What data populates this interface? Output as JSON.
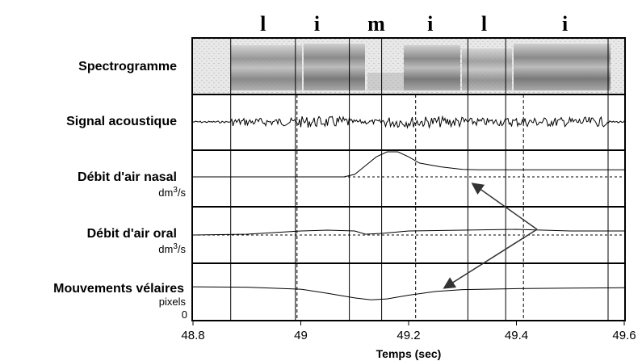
{
  "segments": [
    {
      "label": "l",
      "time": 48.93
    },
    {
      "label": "i",
      "time": 49.03
    },
    {
      "label": "m",
      "time": 49.14
    },
    {
      "label": "i",
      "time": 49.24
    },
    {
      "label": "l",
      "time": 49.34
    },
    {
      "label": "i",
      "time": 49.49
    }
  ],
  "panels": [
    {
      "id": "spectro",
      "label": "Spectrogramme",
      "unit": ""
    },
    {
      "id": "acoustic",
      "label": "Signal acoustique",
      "unit": ""
    },
    {
      "id": "nasal",
      "label": "Débit d'air nasal",
      "unit_base": "dm",
      "unit_exp": "3",
      "unit_tail": "/s"
    },
    {
      "id": "oral",
      "label": "Débit d'air oral",
      "unit_base": "dm",
      "unit_exp": "3",
      "unit_tail": "/s"
    },
    {
      "id": "velum",
      "label": "Mouvements vélaires",
      "unit": "pixels",
      "zero": "0"
    }
  ],
  "x_axis": {
    "title": "Temps (sec)",
    "min": 48.8,
    "max": 49.6,
    "ticks": [
      "48.8",
      "49",
      "49.2",
      "49.4",
      "49.6"
    ]
  },
  "boundaries": {
    "solid": [
      48.87,
      48.99,
      49.09,
      49.15,
      49.31,
      49.38,
      49.57
    ],
    "dashed": [
      48.99,
      49.21,
      49.41
    ]
  },
  "chart_data": {
    "type": "line",
    "xlabel": "Temps (sec)",
    "xlim": [
      48.8,
      49.6
    ],
    "series": [
      {
        "name": "Débit d'air nasal",
        "x": [
          48.8,
          49.08,
          49.1,
          49.12,
          49.14,
          49.16,
          49.18,
          49.2,
          49.22,
          49.26,
          49.3,
          49.33,
          49.6
        ],
        "y": [
          0,
          0,
          0.1,
          0.45,
          0.8,
          1.0,
          1.0,
          0.8,
          0.55,
          0.4,
          0.3,
          0.28,
          0.28
        ]
      },
      {
        "name": "Débit d'air oral",
        "x": [
          48.8,
          48.9,
          48.95,
          49.0,
          49.05,
          49.1,
          49.12,
          49.15,
          49.2,
          49.3,
          49.4,
          49.45,
          49.5,
          49.6
        ],
        "y": [
          0.05,
          0.1,
          0.2,
          0.3,
          0.35,
          0.3,
          0.1,
          0.15,
          0.3,
          0.35,
          0.4,
          0.35,
          0.3,
          0.3
        ]
      },
      {
        "name": "Mouvements vélaires",
        "x": [
          48.8,
          48.9,
          49.0,
          49.05,
          49.1,
          49.13,
          49.16,
          49.2,
          49.25,
          49.3,
          49.4,
          49.5,
          49.6
        ],
        "y": [
          0.95,
          0.93,
          0.82,
          0.6,
          0.35,
          0.25,
          0.3,
          0.5,
          0.7,
          0.8,
          0.85,
          0.88,
          0.9
        ]
      }
    ]
  }
}
